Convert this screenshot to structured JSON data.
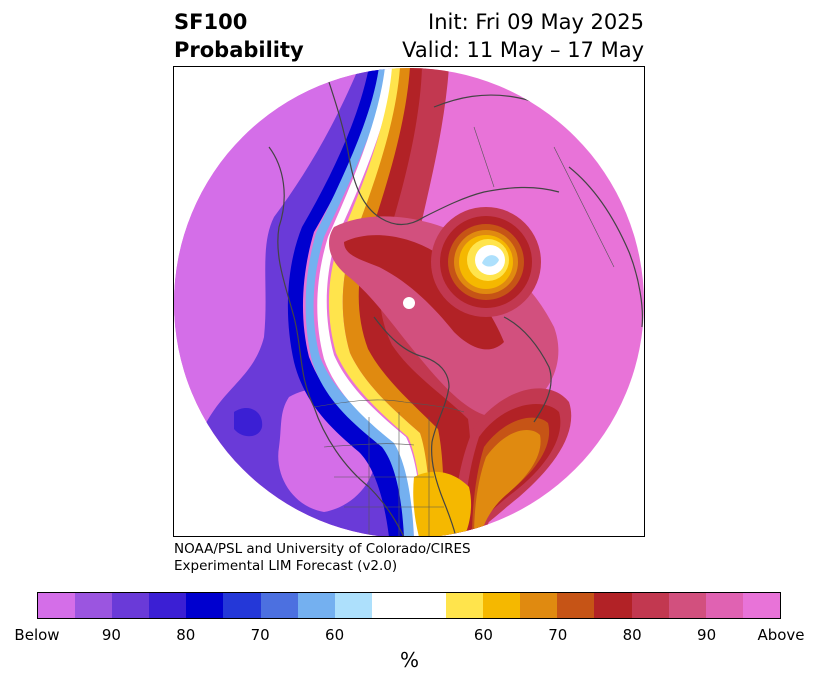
{
  "header": {
    "title_line1": "SF100",
    "title_line2": "Probability",
    "init": "Init: Fri 09 May 2025",
    "valid": "Valid: 11 May – 17 May"
  },
  "credit": {
    "line1": "NOAA/PSL and University of Colorado/CIRES",
    "line2": "Experimental LIM Forecast (v2.0)"
  },
  "colorbar": {
    "colors": [
      "#d46ee8",
      "#9b55e0",
      "#6a3ad8",
      "#3b1fd4",
      "#0000cf",
      "#2438d8",
      "#4c70e0",
      "#74b0f0",
      "#ade0fc",
      "#ffffff",
      "#ffffff",
      "#ffe44c",
      "#f5b800",
      "#e08a10",
      "#c65416",
      "#b22226",
      "#c23850",
      "#d2507e",
      "#e062b2",
      "#e873d8"
    ],
    "tick_labels": [
      "Below",
      "90",
      "80",
      "70",
      "60",
      "60",
      "70",
      "80",
      "90",
      "Above"
    ],
    "unit": "%"
  },
  "map": {
    "region": "North America / Arctic polar stereographic",
    "palette": {
      "above_high": "#e873d8",
      "above_mid": "#d2507e",
      "above_red": "#b22226",
      "above_orange": "#e08a10",
      "above_yellow": "#ffe44c",
      "below_high": "#d46ee8",
      "below_mid": "#6a3ad8",
      "below_blue": "#0000cf",
      "below_light": "#ade0fc",
      "coast_color": "#444444"
    }
  }
}
